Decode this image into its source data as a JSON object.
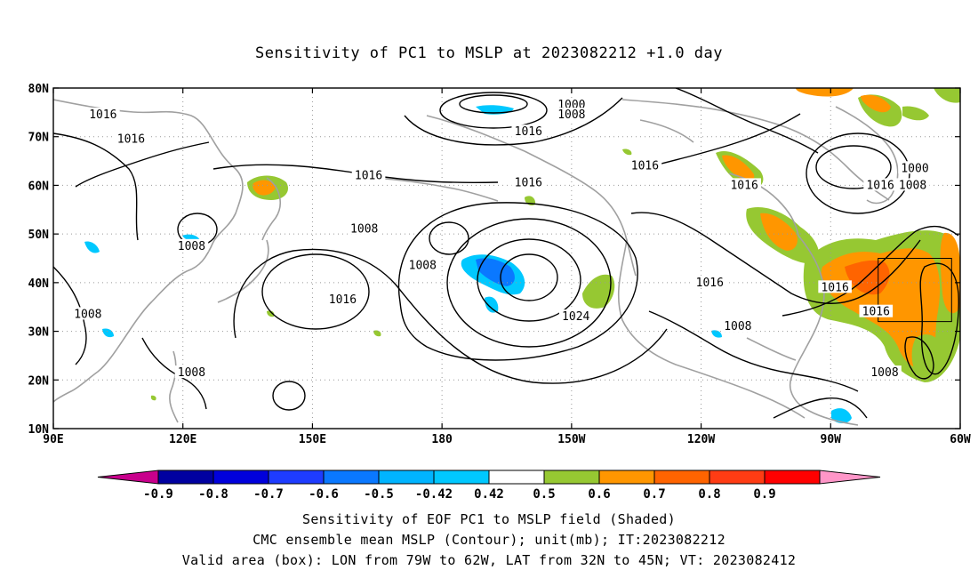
{
  "title": "Sensitivity of PC1 to MSLP at 2023082212 +1.0 day",
  "map": {
    "lon_labels": [
      "90E",
      "120E",
      "150E",
      "180",
      "150W",
      "120W",
      "90W",
      "60W"
    ],
    "lat_labels": [
      "10N",
      "20N",
      "30N",
      "40N",
      "50N",
      "60N",
      "70N",
      "80N"
    ],
    "contour_labels": [
      {
        "text": "1016",
        "lon": 101.5,
        "lat": 74.5
      },
      {
        "text": "1016",
        "lon": 108,
        "lat": 69.5
      },
      {
        "text": "1016",
        "lon": 163,
        "lat": 62
      },
      {
        "text": "1008",
        "lon": 122,
        "lat": 47.5
      },
      {
        "text": "1008",
        "lon": 162,
        "lat": 51
      },
      {
        "text": "1008",
        "lon": 98,
        "lat": 33.5
      },
      {
        "text": "1008",
        "lon": 122,
        "lat": 21.5
      },
      {
        "text": "1016",
        "lon": 157,
        "lat": 36.5
      },
      {
        "text": "1008",
        "lon": 175.5,
        "lat": 43.5
      },
      {
        "text": "1000",
        "lon": -150,
        "lat": 76.5
      },
      {
        "text": "1008",
        "lon": -150,
        "lat": 74.5
      },
      {
        "text": "1016",
        "lon": -160,
        "lat": 71
      },
      {
        "text": "1016",
        "lon": -133,
        "lat": 64
      },
      {
        "text": "1016",
        "lon": -160,
        "lat": 60.5
      },
      {
        "text": "1024",
        "lon": -149,
        "lat": 33
      },
      {
        "text": "1016",
        "lon": -118,
        "lat": 40
      },
      {
        "text": "1008",
        "lon": -111.5,
        "lat": 31
      },
      {
        "text": "1016",
        "lon": -110,
        "lat": 60
      },
      {
        "text": "1016",
        "lon": -89,
        "lat": 39
      },
      {
        "text": "1016",
        "lon": -78.5,
        "lat": 60
      },
      {
        "text": "1016",
        "lon": -79.5,
        "lat": 34
      },
      {
        "text": "1000",
        "lon": -70.5,
        "lat": 63.5
      },
      {
        "text": "1008",
        "lon": -71,
        "lat": 60
      },
      {
        "text": "1008",
        "lon": -77.5,
        "lat": 21.5
      }
    ],
    "valid_box": {
      "lon_min": -79,
      "lon_max": -62,
      "lat_min": 32,
      "lat_max": 45
    }
  },
  "colorbar": {
    "labels": [
      "-0.9",
      "-0.8",
      "-0.7",
      "-0.6",
      "-0.5",
      "-0.42",
      "0.42",
      "0.5",
      "0.6",
      "0.7",
      "0.8",
      "0.9"
    ],
    "colors": [
      "#c8008c",
      "#0000a0",
      "#0000dc",
      "#1e3cff",
      "#0a78ff",
      "#00b4ff",
      "#00c8ff",
      "#ffffff",
      "#96c832",
      "#ff9600",
      "#ff6400",
      "#ff3c14",
      "#ff0000",
      "#ff96c8"
    ]
  },
  "captions": {
    "line1": "Sensitivity of EOF PC1 to MSLP field (Shaded)",
    "line2": "CMC ensemble mean MSLP (Contour); unit(mb); IT:2023082212",
    "line3": "Valid area (box): LON from 79W to 62W, LAT from 32N to 45N; VT: 2023082412"
  }
}
